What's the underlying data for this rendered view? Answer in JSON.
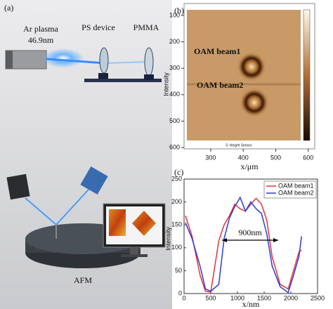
{
  "panel_a": {
    "label": "(a)",
    "source": "Ar plasma",
    "wavelength": "46.9nm",
    "device": "PS device",
    "resist": "PMMA",
    "instrument": "AFM"
  },
  "panel_b": {
    "label": "(b)",
    "beam1": "OAM beam1",
    "beam2": "OAM beam2",
    "xlabel": "x/μm",
    "ylabel": "Intensity",
    "sensor": "5: Height Sensor",
    "xlim": [
      218,
      620
    ],
    "ylim": [
      55,
      605
    ],
    "xticks": [
      300,
      400,
      500,
      600
    ],
    "yticks": [
      100,
      200,
      300,
      400,
      500,
      600
    ]
  },
  "chart_data": {
    "type": "line",
    "label": "(c)",
    "xlabel": "x/nm",
    "ylabel": "Intensity",
    "annotation": "900nm",
    "x": [
      25,
      150,
      300,
      400,
      500,
      650,
      750,
      850,
      950,
      1050,
      1150,
      1250,
      1350,
      1450,
      1550,
      1650,
      1800,
      1950,
      2050,
      2150,
      2200
    ],
    "series": [
      {
        "name": "OAM beam1",
        "color": "#e8303a",
        "values": [
          170,
          125,
          40,
          5,
          3,
          115,
          150,
          170,
          195,
          185,
          180,
          195,
          208,
          195,
          160,
          80,
          20,
          10,
          50,
          90,
          95
        ]
      },
      {
        "name": "OAM beam2",
        "color": "#2a3bd6",
        "values": [
          155,
          120,
          60,
          10,
          5,
          20,
          120,
          165,
          190,
          210,
          180,
          200,
          185,
          175,
          130,
          60,
          15,
          2,
          40,
          80,
          125
        ]
      }
    ],
    "xlim": [
      0,
      2500
    ],
    "ylim": [
      0,
      250
    ],
    "xticks": [
      0,
      500,
      1000,
      1500,
      2000,
      2500
    ],
    "yticks": [
      0,
      50,
      100,
      150,
      200,
      250
    ],
    "legend": "upper right"
  }
}
